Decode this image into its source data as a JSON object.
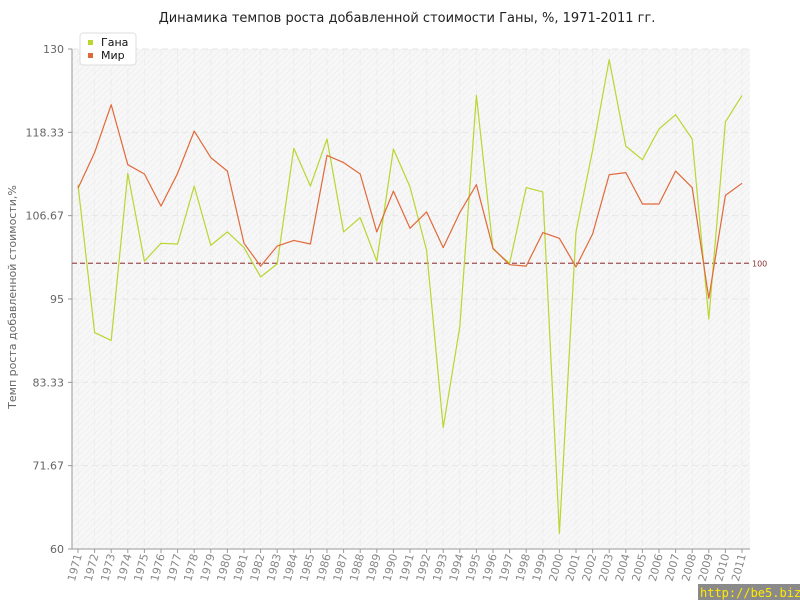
{
  "chart_data": {
    "type": "line",
    "title": "Динамика темпов роста добавленной стоимости Ганы, %, 1971-2011 гг.",
    "xlabel": "",
    "ylabel": "Темп роста добавленной стоимости,%",
    "ylim": [
      60,
      130
    ],
    "yticks": [
      "130",
      "118.33",
      "106.67",
      "95",
      "83.33",
      "71.67",
      "60"
    ],
    "x": [
      "1971",
      "1972",
      "1973",
      "1974",
      "1975",
      "1976",
      "1977",
      "1978",
      "1979",
      "1980",
      "1981",
      "1982",
      "1983",
      "1984",
      "1985",
      "1986",
      "1987",
      "1988",
      "1989",
      "1990",
      "1991",
      "1992",
      "1993",
      "1994",
      "1995",
      "1996",
      "1997",
      "1998",
      "1999",
      "2000",
      "2001",
      "2002",
      "2003",
      "2004",
      "2005",
      "2006",
      "2007",
      "2008",
      "2009",
      "2010",
      "2011"
    ],
    "legend_position": "top-left",
    "grid": true,
    "reference_line": {
      "value": 100,
      "label": "100",
      "color": "#a05050"
    },
    "series": [
      {
        "name": "Гана",
        "color": "#b9d631",
        "values": [
          111.0,
          90.3,
          89.2,
          112.6,
          100.3,
          102.8,
          102.7,
          110.8,
          102.5,
          104.4,
          102.2,
          98.1,
          99.9,
          116.1,
          110.8,
          117.4,
          104.4,
          106.4,
          100.3,
          116.0,
          110.7,
          101.8,
          77.0,
          91.1,
          123.5,
          102.0,
          100.0,
          110.6,
          110.0,
          62.2,
          104.4,
          115.8,
          128.5,
          116.4,
          114.5,
          118.8,
          120.8,
          117.4,
          92.2,
          119.8,
          123.5
        ]
      },
      {
        "name": "Мир",
        "color": "#e0693b",
        "values": [
          110.5,
          115.5,
          122.2,
          113.8,
          112.5,
          108.0,
          112.6,
          118.5,
          114.8,
          112.9,
          102.8,
          99.6,
          102.4,
          103.2,
          102.7,
          115.1,
          114.1,
          112.5,
          104.4,
          110.1,
          104.9,
          107.2,
          102.2,
          107.1,
          111.0,
          102.1,
          99.8,
          99.6,
          104.3,
          103.5,
          99.5,
          104.1,
          112.4,
          112.7,
          108.3,
          108.3,
          112.9,
          110.6,
          95.1,
          109.5,
          111.2
        ]
      }
    ]
  },
  "watermark": "http://be5.biz/"
}
